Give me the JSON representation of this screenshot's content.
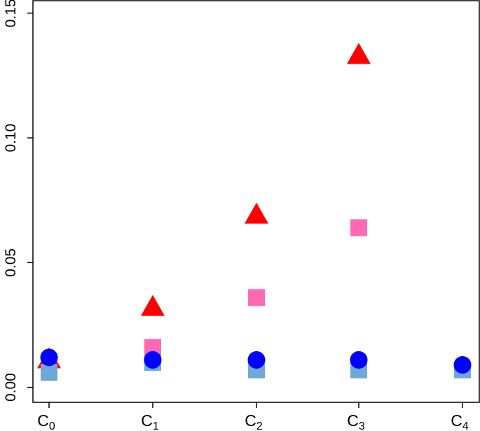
{
  "chart_data": {
    "type": "scatter",
    "categories": [
      "C0",
      "C1",
      "C2",
      "C3",
      "C4"
    ],
    "category_labels": [
      {
        "base": "C",
        "sub": "0"
      },
      {
        "base": "C",
        "sub": "1"
      },
      {
        "base": "C",
        "sub": "2"
      },
      {
        "base": "C",
        "sub": "3"
      },
      {
        "base": "C",
        "sub": "4"
      }
    ],
    "series": [
      {
        "marker": "triangle",
        "color": "#ff0000",
        "values": [
          0.011,
          0.032,
          0.069,
          0.133,
          null
        ]
      },
      {
        "marker": "square",
        "color": "#ff69b4",
        "values": [
          0.006,
          0.016,
          0.036,
          0.064,
          null
        ]
      },
      {
        "marker": "square",
        "color": "#6fa8d6",
        "values": [
          0.006,
          0.01,
          0.007,
          0.007,
          0.007
        ]
      },
      {
        "marker": "circle",
        "color": "#0000ff",
        "values": [
          0.012,
          0.011,
          0.011,
          0.011,
          0.009
        ]
      }
    ],
    "title": "",
    "xlabel": "",
    "ylabel": "",
    "ylim": [
      -0.006,
      0.155
    ],
    "yticks": [
      "0.00",
      "0.05",
      "0.10",
      "0.15"
    ],
    "grid": false,
    "legend": "none"
  }
}
